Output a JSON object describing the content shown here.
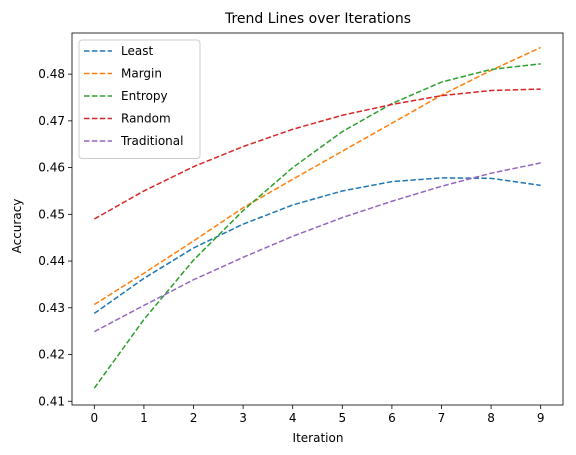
{
  "chart_data": {
    "type": "line",
    "title": "Trend Lines over Iterations",
    "xlabel": "Iteration",
    "ylabel": "Accuracy",
    "x": [
      0,
      1,
      2,
      3,
      4,
      5,
      6,
      7,
      8,
      9
    ],
    "xlim": [
      -0.45,
      9.45
    ],
    "ylim": [
      0.4092,
      0.4888
    ],
    "xticks": [
      0,
      1,
      2,
      3,
      4,
      5,
      6,
      7,
      8,
      9
    ],
    "yticks": [
      0.41,
      0.42,
      0.43,
      0.44,
      0.45,
      0.46,
      0.47,
      0.48
    ],
    "ytick_labels": [
      "0.41",
      "0.42",
      "0.43",
      "0.44",
      "0.45",
      "0.46",
      "0.47",
      "0.48"
    ],
    "grid": false,
    "legend_position": "upper-left",
    "line_style": "dashed",
    "series": [
      {
        "name": "Least",
        "color": "#1f77b4",
        "values": [
          0.4288,
          0.4363,
          0.4428,
          0.4479,
          0.452,
          0.455,
          0.457,
          0.4578,
          0.4577,
          0.4562
        ]
      },
      {
        "name": "Margin",
        "color": "#ff7f0e",
        "values": [
          0.4307,
          0.4374,
          0.4443,
          0.4514,
          0.4575,
          0.4635,
          0.4695,
          0.4755,
          0.4808,
          0.4857
        ]
      },
      {
        "name": "Entropy",
        "color": "#2ca02c",
        "values": [
          0.4128,
          0.4275,
          0.4402,
          0.4508,
          0.46,
          0.4677,
          0.4737,
          0.4783,
          0.481,
          0.4822
        ]
      },
      {
        "name": "Random",
        "color": "#d62728",
        "values": [
          0.449,
          0.455,
          0.4602,
          0.4645,
          0.4682,
          0.4712,
          0.4735,
          0.4754,
          0.4765,
          0.4768
        ]
      },
      {
        "name": "Traditional",
        "color": "#9467bd",
        "values": [
          0.4249,
          0.4305,
          0.436,
          0.4408,
          0.4453,
          0.4493,
          0.4528,
          0.456,
          0.4588,
          0.461
        ]
      }
    ]
  }
}
